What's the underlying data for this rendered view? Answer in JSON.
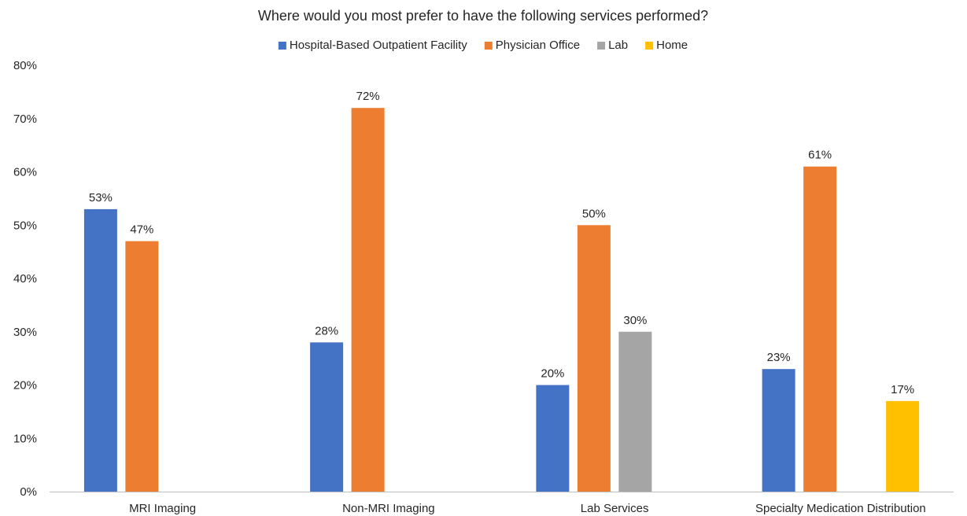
{
  "chart_data": {
    "type": "bar",
    "title": "Where would you most prefer to have the following services performed?",
    "xlabel": "",
    "ylabel": "",
    "ylim": [
      0,
      80
    ],
    "y_ticks": [
      0,
      10,
      20,
      30,
      40,
      50,
      60,
      70,
      80
    ],
    "y_tick_format": "percent",
    "grid": false,
    "legend_position": "top",
    "categories": [
      "MRI Imaging",
      "Non-MRI Imaging",
      "Lab Services",
      "Specialty Medication Distribution"
    ],
    "series": [
      {
        "name": "Hospital-Based Outpatient Facility",
        "color": "#4472C4",
        "values": [
          53,
          28,
          20,
          23
        ]
      },
      {
        "name": "Physician Office",
        "color": "#ED7D31",
        "values": [
          47,
          72,
          50,
          61
        ]
      },
      {
        "name": "Lab",
        "color": "#A5A5A5",
        "values": [
          null,
          null,
          30,
          null
        ]
      },
      {
        "name": "Home",
        "color": "#FFC000",
        "values": [
          null,
          null,
          null,
          17
        ]
      }
    ]
  }
}
